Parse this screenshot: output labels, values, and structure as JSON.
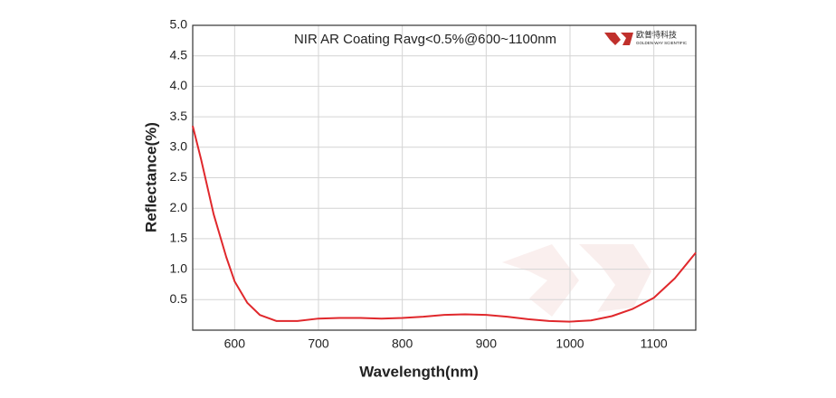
{
  "chart_data": {
    "type": "line",
    "title": "NIR AR Coating Ravg<0.5%@600~1100nm",
    "logo": {
      "name": "欧普特科技",
      "subtitle": "GOLDEN WAY SCIENTIFIC"
    },
    "x_label": "Wavelength(nm)",
    "y_label": "Reflectance(%)",
    "x": [
      550,
      560,
      575,
      590,
      600,
      615,
      630,
      650,
      675,
      700,
      725,
      750,
      775,
      800,
      825,
      850,
      875,
      900,
      925,
      950,
      975,
      1000,
      1025,
      1050,
      1075,
      1100,
      1125,
      1150
    ],
    "series": [
      {
        "color": "#e0282c",
        "values": [
          3.35,
          2.8,
          1.9,
          1.2,
          0.8,
          0.45,
          0.25,
          0.15,
          0.15,
          0.19,
          0.2,
          0.2,
          0.19,
          0.2,
          0.22,
          0.25,
          0.26,
          0.25,
          0.22,
          0.18,
          0.15,
          0.14,
          0.16,
          0.23,
          0.35,
          0.53,
          0.85,
          1.27
        ]
      }
    ],
    "xlim": [
      550,
      1150
    ],
    "xticks": [
      600,
      700,
      800,
      900,
      1000,
      1100
    ],
    "ylim": [
      0,
      5
    ],
    "yticks": [
      0.5,
      {
        "value": 1,
        "label": "1.0"
      },
      1.5,
      {
        "value": 2,
        "label": "2.0"
      },
      2.5,
      {
        "value": 3,
        "label": "3.0"
      },
      3.5,
      {
        "value": 4,
        "label": "4.0"
      },
      4.5,
      {
        "value": 5,
        "label": "5.0"
      }
    ],
    "grid": true
  }
}
